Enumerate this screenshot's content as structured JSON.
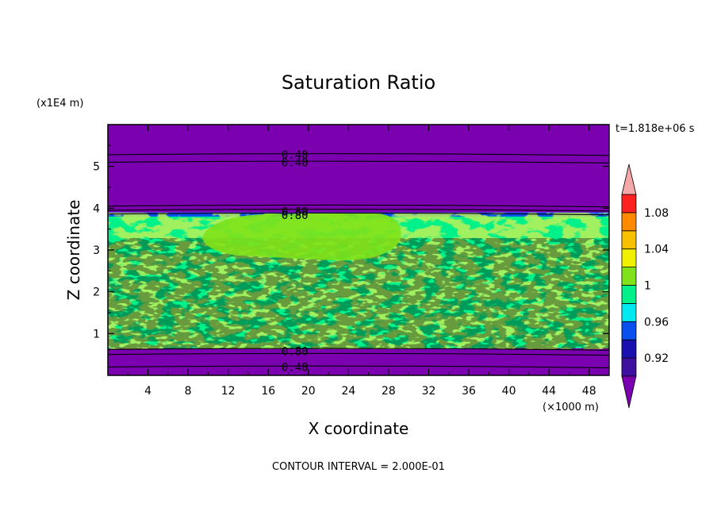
{
  "chart_data": {
    "type": "heatmap",
    "title": "Saturation Ratio",
    "xlabel": "X coordinate",
    "ylabel": "Z coordinate",
    "x_unit_label": "(×1000 m)",
    "y_unit_label": "(x1E4 m)",
    "time_label": "t=1.818e+06 s",
    "footer": "CONTOUR INTERVAL = 2.000E-01",
    "xlim": [
      0,
      50
    ],
    "ylim": [
      0,
      6
    ],
    "x_ticks": [
      4,
      8,
      12,
      16,
      20,
      24,
      28,
      32,
      36,
      40,
      44,
      48
    ],
    "y_ticks": [
      1,
      2,
      3,
      4,
      5
    ],
    "colorbar": {
      "levels": [
        0.9,
        0.92,
        0.94,
        0.96,
        0.98,
        1.0,
        1.02,
        1.04,
        1.06,
        1.08,
        1.1
      ],
      "labels": [
        "0.92",
        "0.96",
        "1",
        "1.04",
        "1.08"
      ],
      "label_values": [
        0.92,
        0.96,
        1.0,
        1.04,
        1.08
      ],
      "colors": [
        "#3f0fa0",
        "#1a10b0",
        "#0a4ff0",
        "#00e8f0",
        "#00f08a",
        "#80e21a",
        "#f0f000",
        "#f7c000",
        "#ff8a00",
        "#ff2020"
      ],
      "under_color": "#7b00b0",
      "over_color": "#f4a8a8"
    },
    "bands": [
      {
        "name": "upper-dry-layer",
        "z_range": [
          3.9,
          6.0
        ],
        "color": "#7b00b0"
      },
      {
        "name": "cloud-top-transition",
        "z_range": [
          3.7,
          3.9
        ],
        "color": "#0a4ff0"
      },
      {
        "name": "cloud-layer",
        "z_range": [
          0.65,
          3.8
        ],
        "color": "#00f08a"
      },
      {
        "name": "lower-dry-layer",
        "z_range": [
          0.0,
          0.65
        ],
        "color": "#7b00b0"
      }
    ],
    "contour_labels": [
      {
        "text": "0.40",
        "x": 17.0,
        "z": 5.28
      },
      {
        "text": "0.40",
        "x": 17.0,
        "z": 5.1
      },
      {
        "text": "0.60",
        "x": 17.0,
        "z": 3.92
      },
      {
        "text": "0.80",
        "x": 17.0,
        "z": 3.84
      },
      {
        "text": "0.80",
        "x": 17.0,
        "z": 0.58
      },
      {
        "text": "0.40",
        "x": 17.0,
        "z": 0.2
      }
    ]
  }
}
